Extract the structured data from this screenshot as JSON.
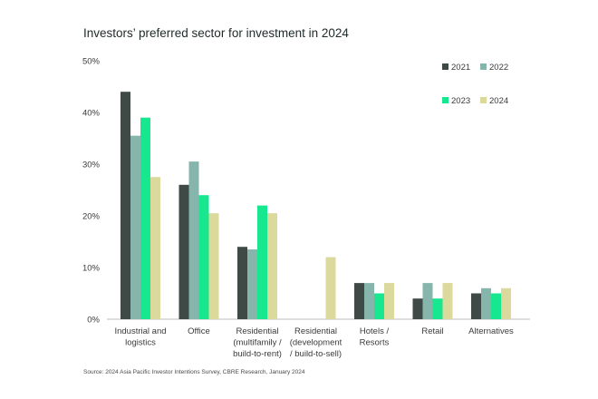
{
  "chart_data": {
    "type": "bar",
    "title": "Investors’ preferred sector for investment in 2024",
    "source": "Source: 2024 Asia Pacific Investor Intentions Survey, CBRE Research, January 2024",
    "categories": [
      [
        "Industrial and",
        "logistics"
      ],
      [
        "Office"
      ],
      [
        "Residential",
        "(multifamily /",
        "build-to-rent)"
      ],
      [
        "Residential",
        "(development",
        "/ build-to-sell)"
      ],
      [
        "Hotels /",
        "Resorts"
      ],
      [
        "Retail"
      ],
      [
        "Alternatives"
      ]
    ],
    "series": [
      {
        "name": "2021",
        "color": "#3f4a47",
        "values": [
          44,
          26,
          14,
          0,
          7,
          4,
          5
        ]
      },
      {
        "name": "2022",
        "color": "#86b5ac",
        "values": [
          35.5,
          30.5,
          13.5,
          0,
          7,
          7,
          6
        ]
      },
      {
        "name": "2023",
        "color": "#17e88f",
        "values": [
          39,
          24,
          22,
          0,
          5,
          4,
          5
        ]
      },
      {
        "name": "2024",
        "color": "#dbd99b",
        "values": [
          27.5,
          20.5,
          20.5,
          12,
          7,
          7,
          6
        ]
      }
    ],
    "yticks": [
      "0%",
      "10%",
      "20%",
      "30%",
      "40%",
      "50%"
    ],
    "ylim": [
      0,
      50
    ],
    "xlabel": "",
    "ylabel": "",
    "grid": false,
    "legend_position": "top-right"
  }
}
